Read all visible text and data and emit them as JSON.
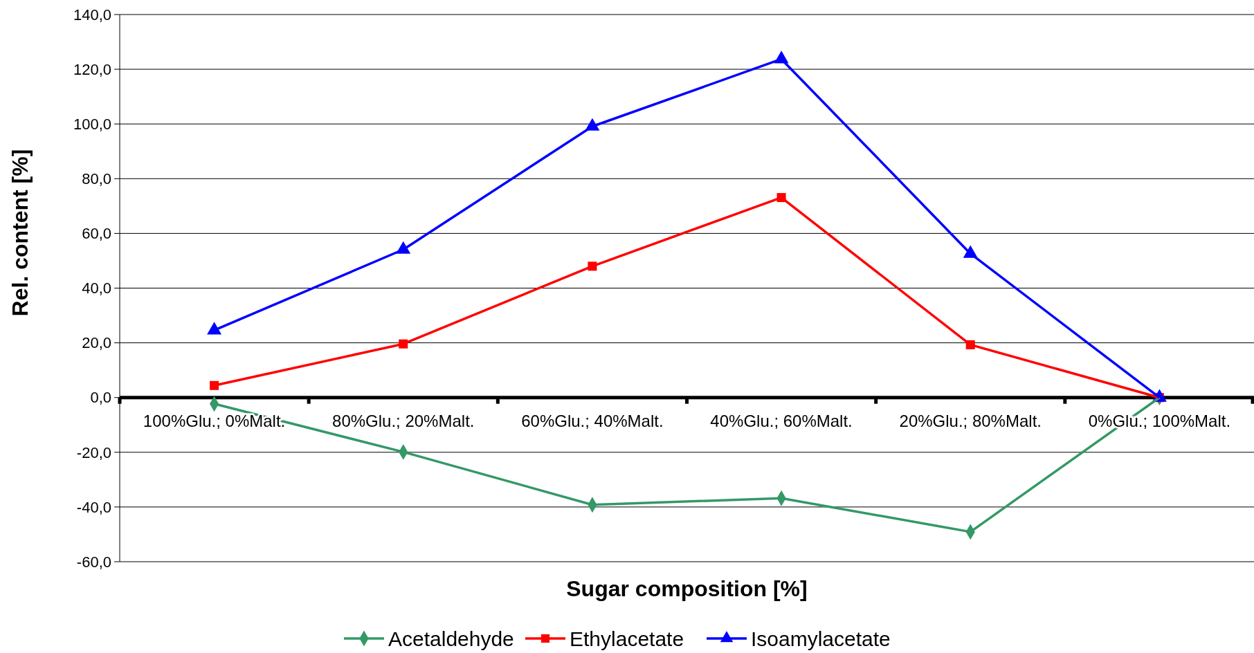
{
  "chart_data": {
    "type": "line",
    "xlabel": "Sugar composition [%]",
    "ylabel": "Rel. content [%]",
    "categories": [
      "100%Glu.; 0%Malt.",
      "80%Glu.; 20%Malt.",
      "60%Glu.; 40%Malt.",
      "40%Glu.; 60%Malt.",
      "20%Glu.; 80%Malt.",
      "0%Glu.; 100%Malt."
    ],
    "series": [
      {
        "name": "Acetaldehyde",
        "color": "#339966",
        "marker": "diamond",
        "values": [
          -2.3,
          -19.9,
          -39.2,
          -36.8,
          -49.1,
          0
        ]
      },
      {
        "name": "Ethylacetate",
        "color": "#ff0000",
        "marker": "square",
        "values": [
          4.4,
          19.6,
          48,
          73.1,
          19.3,
          0
        ]
      },
      {
        "name": "Isoamylacetate",
        "color": "#0000ff",
        "marker": "triangle",
        "values": [
          24.6,
          54.1,
          99.1,
          123.7,
          52.6,
          0
        ]
      }
    ],
    "ylim": [
      -60,
      140
    ],
    "yticks": [
      {
        "value": -60,
        "label": "-60,0"
      },
      {
        "value": -40,
        "label": "-40,0"
      },
      {
        "value": -20,
        "label": "-20,0"
      },
      {
        "value": 0,
        "label": "0,0"
      },
      {
        "value": 20,
        "label": "20,0"
      },
      {
        "value": 40,
        "label": "40,0"
      },
      {
        "value": 60,
        "label": "60,0"
      },
      {
        "value": 80,
        "label": "80,0"
      },
      {
        "value": 100,
        "label": "100,0"
      },
      {
        "value": 120,
        "label": "120,0"
      },
      {
        "value": 140,
        "label": "140,0"
      }
    ],
    "grid": "y",
    "legend": "bottom",
    "line_style": "solid"
  }
}
